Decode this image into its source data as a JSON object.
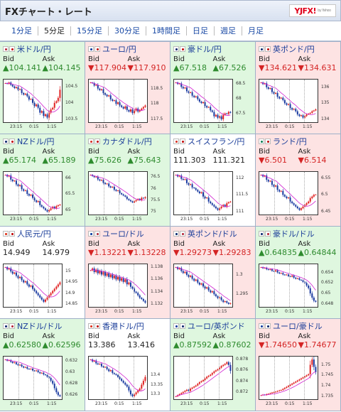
{
  "header": {
    "title": "FXチャート・レート",
    "logo": "YJFX!",
    "logo_sub": "by Yahoo"
  },
  "tabs": [
    "1分足",
    "5分足",
    "15分足",
    "30分足",
    "1時間足",
    "日足",
    "週足",
    "月足"
  ],
  "active_tab": "5分足",
  "labels": {
    "bid": "Bid",
    "ask": "Ask"
  },
  "arrows": {
    "up": "▲",
    "down": "▼"
  },
  "time_ticks": [
    "23:15",
    "0:15",
    "1:15"
  ],
  "tiles": [
    {
      "name": "米ドル/円",
      "trend": "up",
      "bid": "104.141",
      "ask": "104.145",
      "y_ticks": [
        "104.5",
        "104",
        "103.5"
      ],
      "flag_colors": [
        "#b22234",
        "#c00000"
      ],
      "series": [
        104.6,
        104.58,
        104.62,
        104.55,
        104.5,
        104.45,
        104.48,
        104.4,
        104.42,
        104.3,
        104.25,
        104.28,
        104.2,
        104.1,
        104.12,
        104.0,
        103.9,
        103.95,
        103.85,
        103.7,
        103.75,
        103.6,
        103.65,
        103.55,
        103.7,
        103.8,
        103.85,
        104.0,
        104.05,
        104.15,
        104.4
      ]
    },
    {
      "name": "ユーロ/円",
      "trend": "down",
      "bid": "117.904",
      "ask": "117.910",
      "y_ticks": [
        "118.5",
        "118",
        "117.5"
      ],
      "flag_colors": [
        "#003399",
        "#c00000"
      ],
      "series": [
        118.7,
        118.68,
        118.6,
        118.62,
        118.5,
        118.45,
        118.48,
        118.35,
        118.3,
        118.25,
        118.28,
        118.15,
        118.1,
        118.12,
        118.0,
        118.05,
        117.95,
        117.9,
        117.85,
        117.92,
        117.8,
        117.75,
        117.82,
        117.7,
        117.78,
        117.85,
        117.75,
        117.8,
        117.85,
        117.9,
        117.95
      ]
    },
    {
      "name": "豪ドル/円",
      "trend": "up",
      "bid": "67.518",
      "ask": "67.526",
      "y_ticks": [
        "68.5",
        "68",
        "67.5"
      ],
      "flag_colors": [
        "#012169",
        "#c00000"
      ],
      "series": [
        68.55,
        68.5,
        68.52,
        68.4,
        68.35,
        68.38,
        68.25,
        68.2,
        68.22,
        68.1,
        68.05,
        68.08,
        67.98,
        67.9,
        67.85,
        67.88,
        67.75,
        67.7,
        67.72,
        67.6,
        67.55,
        67.4,
        67.45,
        67.35,
        67.4,
        67.3,
        67.45,
        67.5,
        67.48,
        67.55,
        67.52
      ]
    },
    {
      "name": "英ポンド/円",
      "trend": "down",
      "bid": "134.621",
      "ask": "134.631",
      "y_ticks": [
        "136",
        "135",
        "134"
      ],
      "flag_colors": [
        "#012169",
        "#c00000"
      ],
      "series": [
        136.3,
        136.2,
        136.25,
        136.0,
        135.9,
        135.95,
        135.7,
        135.6,
        135.65,
        135.4,
        135.3,
        135.35,
        135.2,
        135.0,
        134.9,
        134.95,
        134.7,
        134.6,
        134.65,
        134.5,
        134.3,
        134.2,
        134.25,
        134.1,
        134.2,
        134.3,
        134.35,
        134.4,
        134.5,
        134.55,
        134.62
      ]
    },
    {
      "name": "NZドル/円",
      "trend": "up",
      "bid": "65.174",
      "ask": "65.189",
      "y_ticks": [
        "66",
        "65.5",
        "65"
      ],
      "flag_colors": [
        "#012169",
        "#c00000"
      ],
      "series": [
        66.1,
        66.05,
        66.08,
        65.95,
        65.9,
        65.92,
        65.8,
        65.75,
        65.78,
        65.65,
        65.6,
        65.62,
        65.5,
        65.45,
        65.48,
        65.38,
        65.3,
        65.25,
        65.28,
        65.15,
        65.1,
        65.05,
        65.0,
        64.95,
        65.0,
        65.05,
        65.1,
        65.05,
        65.12,
        65.15,
        65.17
      ]
    },
    {
      "name": "カナダドル/円",
      "trend": "up",
      "bid": "75.626",
      "ask": "75.643",
      "y_ticks": [
        "76.5",
        "76",
        "75.5",
        "75"
      ],
      "flag_colors": [
        "#d52b1e",
        "#c00000"
      ],
      "series": [
        76.6,
        76.55,
        76.5,
        76.52,
        76.4,
        76.35,
        76.38,
        76.25,
        76.2,
        76.22,
        76.1,
        76.05,
        76.08,
        75.95,
        75.9,
        75.92,
        75.8,
        75.75,
        75.7,
        75.65,
        75.55,
        75.5,
        75.45,
        75.4,
        75.45,
        75.5,
        75.55,
        75.5,
        75.6,
        75.58,
        75.63
      ]
    },
    {
      "name": "スイスフラン/円",
      "trend": "neutral",
      "bid": "111.303",
      "ask": "111.321",
      "y_ticks": [
        "112",
        "111.5",
        "111"
      ],
      "flag_colors": [
        "#d52b1e",
        "#c00000"
      ],
      "series": [
        112.1,
        112.05,
        112.08,
        111.98,
        111.95,
        111.97,
        111.85,
        111.8,
        111.82,
        111.72,
        111.7,
        111.65,
        111.6,
        111.55,
        111.58,
        111.45,
        111.4,
        111.42,
        111.3,
        111.25,
        111.2,
        111.15,
        111.1,
        111.05,
        111.1,
        111.15,
        111.2,
        111.15,
        111.25,
        111.28,
        111.3
      ]
    },
    {
      "name": "ランド/円",
      "trend": "down",
      "bid": "6.501",
      "ask": "6.514",
      "y_ticks": [
        "6.55",
        "6.5",
        "6.45"
      ],
      "flag_colors": [
        "#007a4d",
        "#c00000"
      ],
      "series": [
        6.56,
        6.555,
        6.558,
        6.545,
        6.54,
        6.542,
        6.53,
        6.525,
        6.528,
        6.515,
        6.51,
        6.512,
        6.5,
        6.495,
        6.49,
        6.492,
        6.48,
        6.475,
        6.47,
        6.465,
        6.46,
        6.455,
        6.46,
        6.465,
        6.47,
        6.475,
        6.48,
        6.49,
        6.495,
        6.5,
        6.501
      ]
    },
    {
      "name": "人民元/円",
      "trend": "neutral",
      "bid": "14.949",
      "ask": "14.979",
      "y_ticks": [
        "15",
        "14.95",
        "14.9",
        "14.85"
      ],
      "flag_colors": [
        "#de2910",
        "#c00000"
      ],
      "series": [
        15.02,
        15.01,
        15.015,
        15.0,
        14.99,
        14.995,
        14.98,
        14.97,
        14.975,
        14.96,
        14.95,
        14.955,
        14.94,
        14.93,
        14.935,
        14.92,
        14.91,
        14.9,
        14.89,
        14.88,
        14.87,
        14.86,
        14.87,
        14.88,
        14.89,
        14.9,
        14.91,
        14.92,
        14.93,
        14.94,
        14.95
      ]
    },
    {
      "name": "ユーロ/ドル",
      "trend": "down",
      "bid": "1.13221",
      "ask": "1.13228",
      "y_ticks": [
        "1.138",
        "1.136",
        "1.134",
        "1.132"
      ],
      "flag_colors": [
        "#003399",
        "#b22234"
      ],
      "series": [
        1.1375,
        1.1378,
        1.1372,
        1.1376,
        1.137,
        1.1374,
        1.1368,
        1.1372,
        1.1366,
        1.137,
        1.1364,
        1.1368,
        1.1362,
        1.1366,
        1.136,
        1.1364,
        1.1358,
        1.1362,
        1.1356,
        1.136,
        1.1352,
        1.1355,
        1.1348,
        1.1345,
        1.134,
        1.1338,
        1.1334,
        1.133,
        1.1328,
        1.1325,
        1.1322
      ]
    },
    {
      "name": "英ポンド/ドル",
      "trend": "down",
      "bid": "1.29273",
      "ask": "1.29283",
      "y_ticks": [
        "1.3",
        "1.295"
      ],
      "flag_colors": [
        "#012169",
        "#b22234"
      ],
      "series": [
        1.302,
        1.3015,
        1.3018,
        1.301,
        1.3005,
        1.3008,
        1.3,
        1.2995,
        1.2998,
        1.299,
        1.2985,
        1.2988,
        1.298,
        1.2975,
        1.2978,
        1.297,
        1.2965,
        1.2968,
        1.296,
        1.2955,
        1.2958,
        1.295,
        1.2945,
        1.294,
        1.2942,
        1.2935,
        1.293,
        1.2932,
        1.2928,
        1.2925,
        1.2927
      ]
    },
    {
      "name": "豪ドル/ドル",
      "trend": "up",
      "bid": "0.64835",
      "ask": "0.64844",
      "y_ticks": [
        "0.654",
        "0.652",
        "0.65",
        "0.648"
      ],
      "flag_colors": [
        "#012169",
        "#b22234"
      ],
      "series": [
        0.655,
        0.6548,
        0.6549,
        0.6546,
        0.6545,
        0.6546,
        0.6543,
        0.6542,
        0.6544,
        0.654,
        0.6538,
        0.6539,
        0.6536,
        0.6535,
        0.6536,
        0.6533,
        0.6532,
        0.6534,
        0.653,
        0.6528,
        0.6529,
        0.6526,
        0.6525,
        0.6522,
        0.652,
        0.6515,
        0.651,
        0.65,
        0.6492,
        0.6486,
        0.6484
      ]
    },
    {
      "name": "NZドル/ドル",
      "trend": "up",
      "bid": "0.62580",
      "ask": "0.62596",
      "y_ticks": [
        "0.632",
        "0.63",
        "0.628",
        "0.626"
      ],
      "flag_colors": [
        "#012169",
        "#b22234"
      ],
      "series": [
        0.6322,
        0.632,
        0.6321,
        0.6318,
        0.6316,
        0.6317,
        0.6314,
        0.6312,
        0.6313,
        0.631,
        0.6308,
        0.6309,
        0.6306,
        0.6305,
        0.6306,
        0.6303,
        0.6302,
        0.6303,
        0.63,
        0.6298,
        0.6299,
        0.6296,
        0.6295,
        0.6292,
        0.629,
        0.6285,
        0.628,
        0.6272,
        0.6265,
        0.626,
        0.6258
      ]
    },
    {
      "name": "香港ドル/円",
      "trend": "neutral",
      "bid": "13.386",
      "ask": "13.416",
      "y_ticks": [
        "13.4",
        "13.35",
        "13.3"
      ],
      "flag_colors": [
        "#de2910",
        "#c00000"
      ],
      "series": [
        13.48,
        13.47,
        13.475,
        13.46,
        13.455,
        13.458,
        13.445,
        13.44,
        13.442,
        13.43,
        13.42,
        13.425,
        13.41,
        13.405,
        13.4,
        13.39,
        13.38,
        13.37,
        13.36,
        13.35,
        13.34,
        13.32,
        13.3,
        13.29,
        13.3,
        13.31,
        13.32,
        13.33,
        13.35,
        13.37,
        13.39
      ]
    },
    {
      "name": "ユーロ/英ポンド",
      "trend": "up",
      "bid": "0.87592",
      "ask": "0.87602",
      "y_ticks": [
        "0.878",
        "0.876",
        "0.874",
        "0.872"
      ],
      "flag_colors": [
        "#003399",
        "#012169"
      ],
      "series": [
        0.8712,
        0.8714,
        0.8716,
        0.8718,
        0.872,
        0.8722,
        0.8724,
        0.8722,
        0.8726,
        0.8728,
        0.873,
        0.8732,
        0.8735,
        0.8738,
        0.874,
        0.8742,
        0.8745,
        0.8748,
        0.875,
        0.8752,
        0.8755,
        0.8758,
        0.876,
        0.8762,
        0.8765,
        0.8768,
        0.877,
        0.8772,
        0.8775,
        0.877,
        0.8759
      ]
    },
    {
      "name": "ユーロ/豪ドル",
      "trend": "down",
      "bid": "1.74650",
      "ask": "1.74677",
      "y_ticks": [
        "1.75",
        "1.745",
        "1.74",
        "1.735"
      ],
      "flag_colors": [
        "#003399",
        "#012169"
      ],
      "series": [
        1.7355,
        1.7358,
        1.7356,
        1.736,
        1.7362,
        1.7365,
        1.7368,
        1.737,
        1.7372,
        1.7375,
        1.7378,
        1.738,
        1.7385,
        1.739,
        1.7395,
        1.74,
        1.7405,
        1.741,
        1.7415,
        1.742,
        1.7425,
        1.743,
        1.7435,
        1.744,
        1.7445,
        1.745,
        1.7455,
        1.75,
        1.7525,
        1.749,
        1.7465
      ]
    }
  ]
}
